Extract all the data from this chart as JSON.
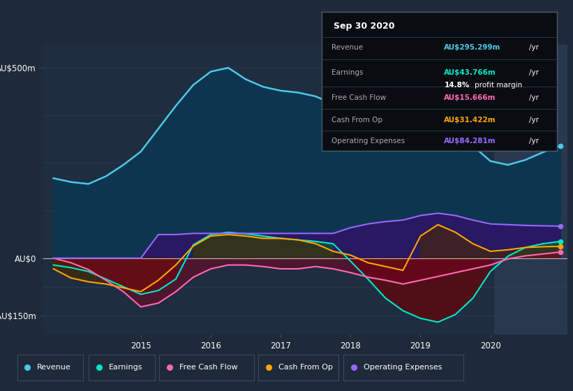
{
  "bg_color": "#1e2a3a",
  "plot_bg_color": "#1e2d40",
  "ylim": [
    -200,
    560
  ],
  "xlim": [
    2013.6,
    2021.1
  ],
  "x_ticks": [
    2015,
    2016,
    2017,
    2018,
    2019,
    2020
  ],
  "grid_color": "#2a3f57",
  "zero_line_color": "#cccccc",
  "revenue_color": "#4dc8e8",
  "earnings_color": "#00e8c8",
  "fcf_color": "#ff69b4",
  "cashfromop_color": "#ffa500",
  "opex_color": "#9966ff",
  "highlight_x_start": 2020.05,
  "revenue_x": [
    2013.75,
    2014.0,
    2014.25,
    2014.5,
    2014.75,
    2015.0,
    2015.25,
    2015.5,
    2015.75,
    2016.0,
    2016.25,
    2016.5,
    2016.75,
    2017.0,
    2017.25,
    2017.5,
    2017.75,
    2018.0,
    2018.25,
    2018.5,
    2018.75,
    2019.0,
    2019.25,
    2019.5,
    2019.75,
    2020.0,
    2020.25,
    2020.5,
    2020.75,
    2021.0
  ],
  "revenue_y": [
    210,
    200,
    195,
    215,
    245,
    280,
    340,
    400,
    455,
    490,
    500,
    470,
    450,
    440,
    435,
    425,
    405,
    380,
    360,
    350,
    365,
    380,
    368,
    345,
    295,
    255,
    245,
    258,
    278,
    295
  ],
  "earnings_x": [
    2013.75,
    2014.0,
    2014.25,
    2014.5,
    2014.75,
    2015.0,
    2015.25,
    2015.5,
    2015.75,
    2016.0,
    2016.25,
    2016.5,
    2016.75,
    2017.0,
    2017.25,
    2017.5,
    2017.75,
    2018.0,
    2018.25,
    2018.5,
    2018.75,
    2019.0,
    2019.25,
    2019.5,
    2019.75,
    2020.0,
    2020.25,
    2020.5,
    2020.75,
    2021.0
  ],
  "earnings_y": [
    -18,
    -25,
    -35,
    -55,
    -75,
    -95,
    -85,
    -55,
    35,
    62,
    68,
    64,
    58,
    52,
    48,
    44,
    38,
    -8,
    -55,
    -105,
    -138,
    -158,
    -168,
    -148,
    -105,
    -35,
    5,
    28,
    38,
    44
  ],
  "fcf_x": [
    2013.75,
    2014.0,
    2014.25,
    2014.5,
    2014.75,
    2015.0,
    2015.25,
    2015.5,
    2015.75,
    2016.0,
    2016.25,
    2016.5,
    2016.75,
    2017.0,
    2017.25,
    2017.5,
    2017.75,
    2018.0,
    2018.25,
    2018.5,
    2018.75,
    2019.0,
    2019.25,
    2019.5,
    2019.75,
    2020.0,
    2020.25,
    2020.5,
    2020.75,
    2021.0
  ],
  "fcf_y": [
    0,
    -12,
    -30,
    -58,
    -88,
    -128,
    -118,
    -88,
    -50,
    -28,
    -18,
    -18,
    -22,
    -28,
    -28,
    -22,
    -28,
    -38,
    -50,
    -58,
    -68,
    -58,
    -48,
    -38,
    -28,
    -18,
    -2,
    6,
    11,
    16
  ],
  "cashfromop_x": [
    2013.75,
    2014.0,
    2014.25,
    2014.5,
    2014.75,
    2015.0,
    2015.25,
    2015.5,
    2015.75,
    2016.0,
    2016.25,
    2016.5,
    2016.75,
    2017.0,
    2017.25,
    2017.5,
    2017.75,
    2018.0,
    2018.25,
    2018.5,
    2018.75,
    2019.0,
    2019.25,
    2019.5,
    2019.75,
    2020.0,
    2020.25,
    2020.5,
    2020.75,
    2021.0
  ],
  "cashfromop_y": [
    -28,
    -52,
    -62,
    -68,
    -78,
    -88,
    -58,
    -18,
    32,
    58,
    62,
    58,
    52,
    52,
    48,
    38,
    18,
    8,
    -12,
    -22,
    -32,
    58,
    88,
    68,
    38,
    18,
    22,
    28,
    30,
    31
  ],
  "opex_x": [
    2013.75,
    2014.0,
    2014.25,
    2014.5,
    2014.75,
    2015.0,
    2015.25,
    2015.5,
    2015.75,
    2016.0,
    2016.25,
    2016.5,
    2016.75,
    2017.0,
    2017.25,
    2017.5,
    2017.75,
    2018.0,
    2018.25,
    2018.5,
    2018.75,
    2019.0,
    2019.25,
    2019.5,
    2019.75,
    2020.0,
    2020.25,
    2020.5,
    2020.75,
    2021.0
  ],
  "opex_y": [
    0,
    0,
    0,
    0,
    0,
    0,
    62,
    62,
    65,
    65,
    65,
    65,
    65,
    65,
    65,
    65,
    65,
    80,
    90,
    96,
    100,
    112,
    118,
    112,
    100,
    90,
    88,
    86,
    85,
    84
  ],
  "legend_items": [
    {
      "label": "Revenue",
      "color": "#4dc8e8"
    },
    {
      "label": "Earnings",
      "color": "#00e8c8"
    },
    {
      "label": "Free Cash Flow",
      "color": "#ff69b4"
    },
    {
      "label": "Cash From Op",
      "color": "#ffa500"
    },
    {
      "label": "Operating Expenses",
      "color": "#9966ff"
    }
  ]
}
